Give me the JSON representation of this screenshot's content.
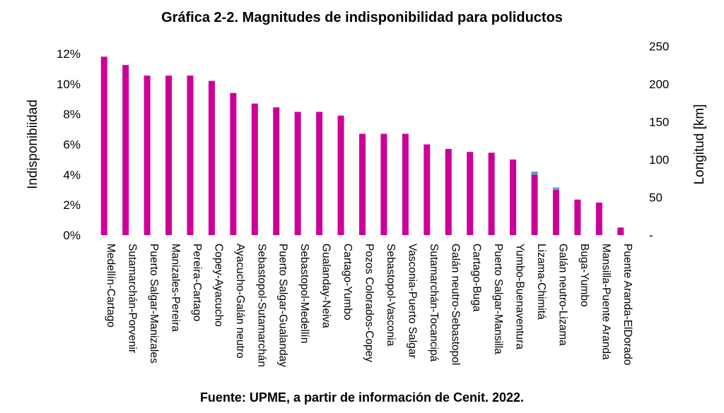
{
  "title": "Gráfica 2-2. Magnitudes de indisponibilidad para poliductos",
  "source": "Fuente: UPME, a partir de información de Cenit. 2022.",
  "chart_data": {
    "type": "bar",
    "ylabel": "Indisponibiidad",
    "y2label": "Longitud [km]",
    "ylim": [
      0,
      12
    ],
    "yticks": [
      "0%",
      "2%",
      "4%",
      "6%",
      "8%",
      "10%",
      "12%"
    ],
    "y2lim": [
      0,
      240
    ],
    "y2ticks": [
      "-",
      "50",
      "100",
      "150",
      "200",
      "250"
    ],
    "grid": false,
    "bar_color": "#CC0099",
    "overlay_color": "#5B9BD5",
    "categories": [
      "Medellín-Cartago",
      "Sutamarchán-Porvenir",
      "Puerto Salgar-Manizales",
      "Manizales-Pereira",
      "Pereira-Cartago",
      "Copey-Ayacucho",
      "Ayacucho-Galán neutro",
      "Sebastopol-Sutamarchán",
      "Puerto Salgar-Gualanday",
      "Sebastopol-Medellín",
      "Gualanday-Neiva",
      "Cartago-Yumbo",
      "Pozos Colorados-Copey",
      "Sebastopol-Vasconia",
      "Vasconia-Puerto Salgar",
      "Sutamarchán-Tocancipá",
      "Galán neutro-Sebastopol",
      "Cartago-Buga",
      "Puerto Salgar-Mansilla",
      "Yumbo-Buenaventura",
      "Lizama-Chimitá",
      "Galán neutro-Lizama",
      "Buga-Yumbo",
      "Mansilla-Puente Aranda",
      "Puente Aranda-ElDorado"
    ],
    "series": [
      {
        "values": [
          11.8,
          11.25,
          10.55,
          10.55,
          10.55,
          10.2,
          9.4,
          8.7,
          8.45,
          8.15,
          8.15,
          7.9,
          6.7,
          6.7,
          6.7,
          6.0,
          5.7,
          5.5,
          5.45,
          5.0,
          4.0,
          3.0,
          2.35,
          2.15,
          0.5
        ]
      }
    ],
    "overlay": [
      {
        "category": "Lizama-Chimitá",
        "from": 4.0,
        "to": 4.2
      },
      {
        "category": "Galán neutro-Lizama",
        "from": 3.0,
        "to": 3.15
      }
    ]
  }
}
